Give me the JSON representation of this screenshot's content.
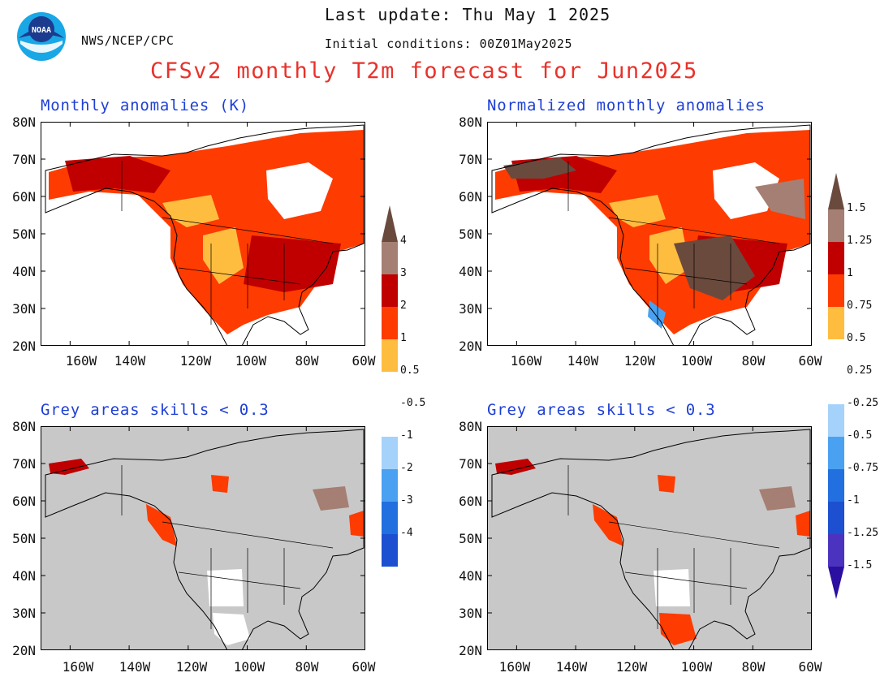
{
  "header": {
    "last_update": "Last update: Thu May 1 2025",
    "agency": "NWS/NCEP/CPC",
    "initial_conditions": "Initial conditions: 00Z01May2025",
    "title": "CFSv2 monthly T2m forecast for Jun2025",
    "logo_text": "NOAA"
  },
  "panels": [
    {
      "title": "Monthly anomalies (K)"
    },
    {
      "title": "Normalized monthly anomalies"
    },
    {
      "title": "Grey areas skills < 0.3"
    },
    {
      "title": "Grey areas skills < 0.3"
    }
  ],
  "axes": {
    "lat_labels": [
      "80N",
      "70N",
      "60N",
      "50N",
      "40N",
      "30N",
      "20N"
    ],
    "lon_labels": [
      "160W",
      "140W",
      "120W",
      "100W",
      "80W",
      "60W"
    ]
  },
  "colorbars": {
    "left": {
      "labels": [
        "4",
        "3",
        "2",
        "1",
        "0.5",
        "-0.5",
        "-1",
        "-2",
        "-3",
        "-4"
      ],
      "colors": [
        "#6b4a3e",
        "#a57f73",
        "#c00000",
        "#fe3b00",
        "#ffbd40",
        "#ffffff",
        "#a5d2fa",
        "#4aa1f2",
        "#226fe0",
        "#1d4fd1",
        "#4b33c0",
        "#2b0fa0"
      ]
    },
    "right": {
      "labels": [
        "1.5",
        "1.25",
        "1",
        "0.75",
        "0.5",
        "0.25",
        "-0.25",
        "-0.5",
        "-0.75",
        "-1",
        "-1.25",
        "-1.5"
      ],
      "colors": [
        "#6b4a3e",
        "#a57f73",
        "#c00000",
        "#fe3b00",
        "#ffbd40",
        "#ffffff",
        "#a5d2fa",
        "#4aa1f2",
        "#226fe0",
        "#1d4fd1",
        "#4b33c0",
        "#2b0fa0"
      ]
    }
  },
  "colors": {
    "title": "#e8322b",
    "panel_title": "#1e3fd6",
    "skill_grey": "#c8c8c8"
  }
}
